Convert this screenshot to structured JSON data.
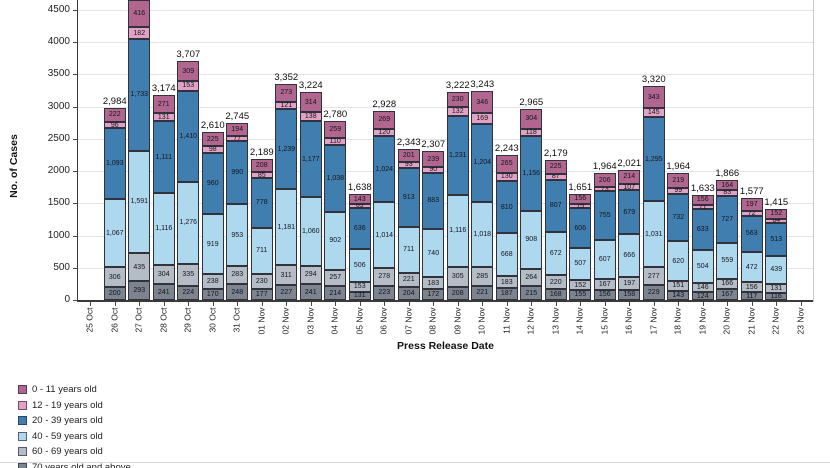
{
  "axis": {
    "y_title": "No. of Cases",
    "x_title": "Press Release Date"
  },
  "legend": [
    {
      "label": "0 - 11 years old",
      "color": "#b0668e"
    },
    {
      "label": "12 - 19 years old",
      "color": "#e2a2c6"
    },
    {
      "label": "20 - 39 years old",
      "color": "#3f7eae"
    },
    {
      "label": "40 - 59 years old",
      "color": "#aed8ee"
    },
    {
      "label": "60 - 69 years old",
      "color": "#b4bcc5"
    },
    {
      "label": "70 years old and above",
      "color": "#7b848f"
    }
  ],
  "chart_data": {
    "type": "bar",
    "stacked": true,
    "title": "",
    "xlabel": "Press Release Date",
    "ylabel": "No. of Cases",
    "ylim": [
      0,
      4500
    ],
    "yticks": [
      0,
      500,
      1000,
      1500,
      2000,
      2500,
      3000,
      3500,
      4000,
      4500
    ],
    "grid": true,
    "legend_position": "bottom-left",
    "categories": [
      "25 Oct",
      "26 Oct",
      "27 Oct",
      "28 Oct",
      "29 Oct",
      "30 Oct",
      "31 Oct",
      "01 Nov",
      "02 Nov",
      "03 Nov",
      "04 Nov",
      "05 Nov",
      "06 Nov",
      "07 Nov",
      "08 Nov",
      "09 Nov",
      "10 Nov",
      "11 Nov",
      "12 Nov",
      "13 Nov",
      "14 Nov",
      "15 Nov",
      "16 Nov",
      "17 Nov",
      "18 Nov",
      "19 Nov",
      "20 Nov",
      "21 Nov",
      "22 Nov",
      "23 Nov"
    ],
    "series": [
      {
        "name": "70 years old and above",
        "color": "#7b848f",
        "values": [
          null,
          200,
          293,
          241,
          224,
          170,
          248,
          177,
          227,
          241,
          214,
          131,
          223,
          204,
          172,
          208,
          221,
          187,
          215,
          168,
          155,
          156,
          158,
          229,
          143,
          124,
          167,
          117,
          116,
          null
        ]
      },
      {
        "name": "60 - 69 years old",
        "color": "#b4bcc5",
        "values": [
          null,
          306,
          435,
          304,
          335,
          238,
          283,
          230,
          311,
          294,
          257,
          153,
          278,
          221,
          183,
          305,
          285,
          183,
          264,
          220,
          152,
          167,
          197,
          277,
          151,
          146,
          166,
          156,
          131,
          null
        ]
      },
      {
        "name": "40 - 59 years old",
        "color": "#aed8ee",
        "values": [
          null,
          1067,
          1591,
          1116,
          1276,
          919,
          953,
          711,
          1181,
          1060,
          902,
          506,
          1014,
          711,
          740,
          1116,
          1018,
          668,
          908,
          672,
          507,
          607,
          666,
          1031,
          620,
          504,
          559,
          472,
          439,
          null
        ]
      },
      {
        "name": "20 - 39 years old",
        "color": "#3f7eae",
        "values": [
          null,
          1093,
          1733,
          1111,
          1410,
          960,
          990,
          778,
          1239,
          1177,
          1038,
          636,
          1024,
          913,
          883,
          1231,
          1204,
          810,
          1156,
          807,
          606,
          755,
          679,
          1295,
          732,
          633,
          727,
          563,
          513,
          null
        ]
      },
      {
        "name": "12 - 19 years old",
        "color": "#e2a2c6",
        "values": [
          null,
          96,
          182,
          131,
          153,
          98,
          77,
          85,
          121,
          138,
          110,
          69,
          120,
          93,
          90,
          132,
          169,
          130,
          118,
          87,
          75,
          73,
          107,
          145,
          99,
          71,
          83,
          72,
          64,
          null
        ]
      },
      {
        "name": "0 - 11 years old",
        "color": "#b0668e",
        "values": [
          null,
          222,
          416,
          271,
          309,
          225,
          194,
          208,
          273,
          314,
          259,
          143,
          269,
          201,
          239,
          230,
          346,
          265,
          304,
          225,
          156,
          206,
          214,
          343,
          219,
          156,
          164,
          197,
          152,
          null
        ]
      }
    ],
    "totals": [
      null,
      "2,984",
      null,
      "3,174",
      "3,707",
      "2,610",
      "2,745",
      "2,189",
      "3,352",
      "3,224",
      "2,780",
      "1,638",
      "2,928",
      "2,343",
      "2,307",
      "3,222",
      "3,243",
      "2,243",
      "2,965",
      "2,179",
      "1,651",
      "1,964",
      "2,021",
      "3,320",
      "1,964",
      "1,633",
      "1,866",
      "1,577",
      "1,415",
      null
    ]
  }
}
